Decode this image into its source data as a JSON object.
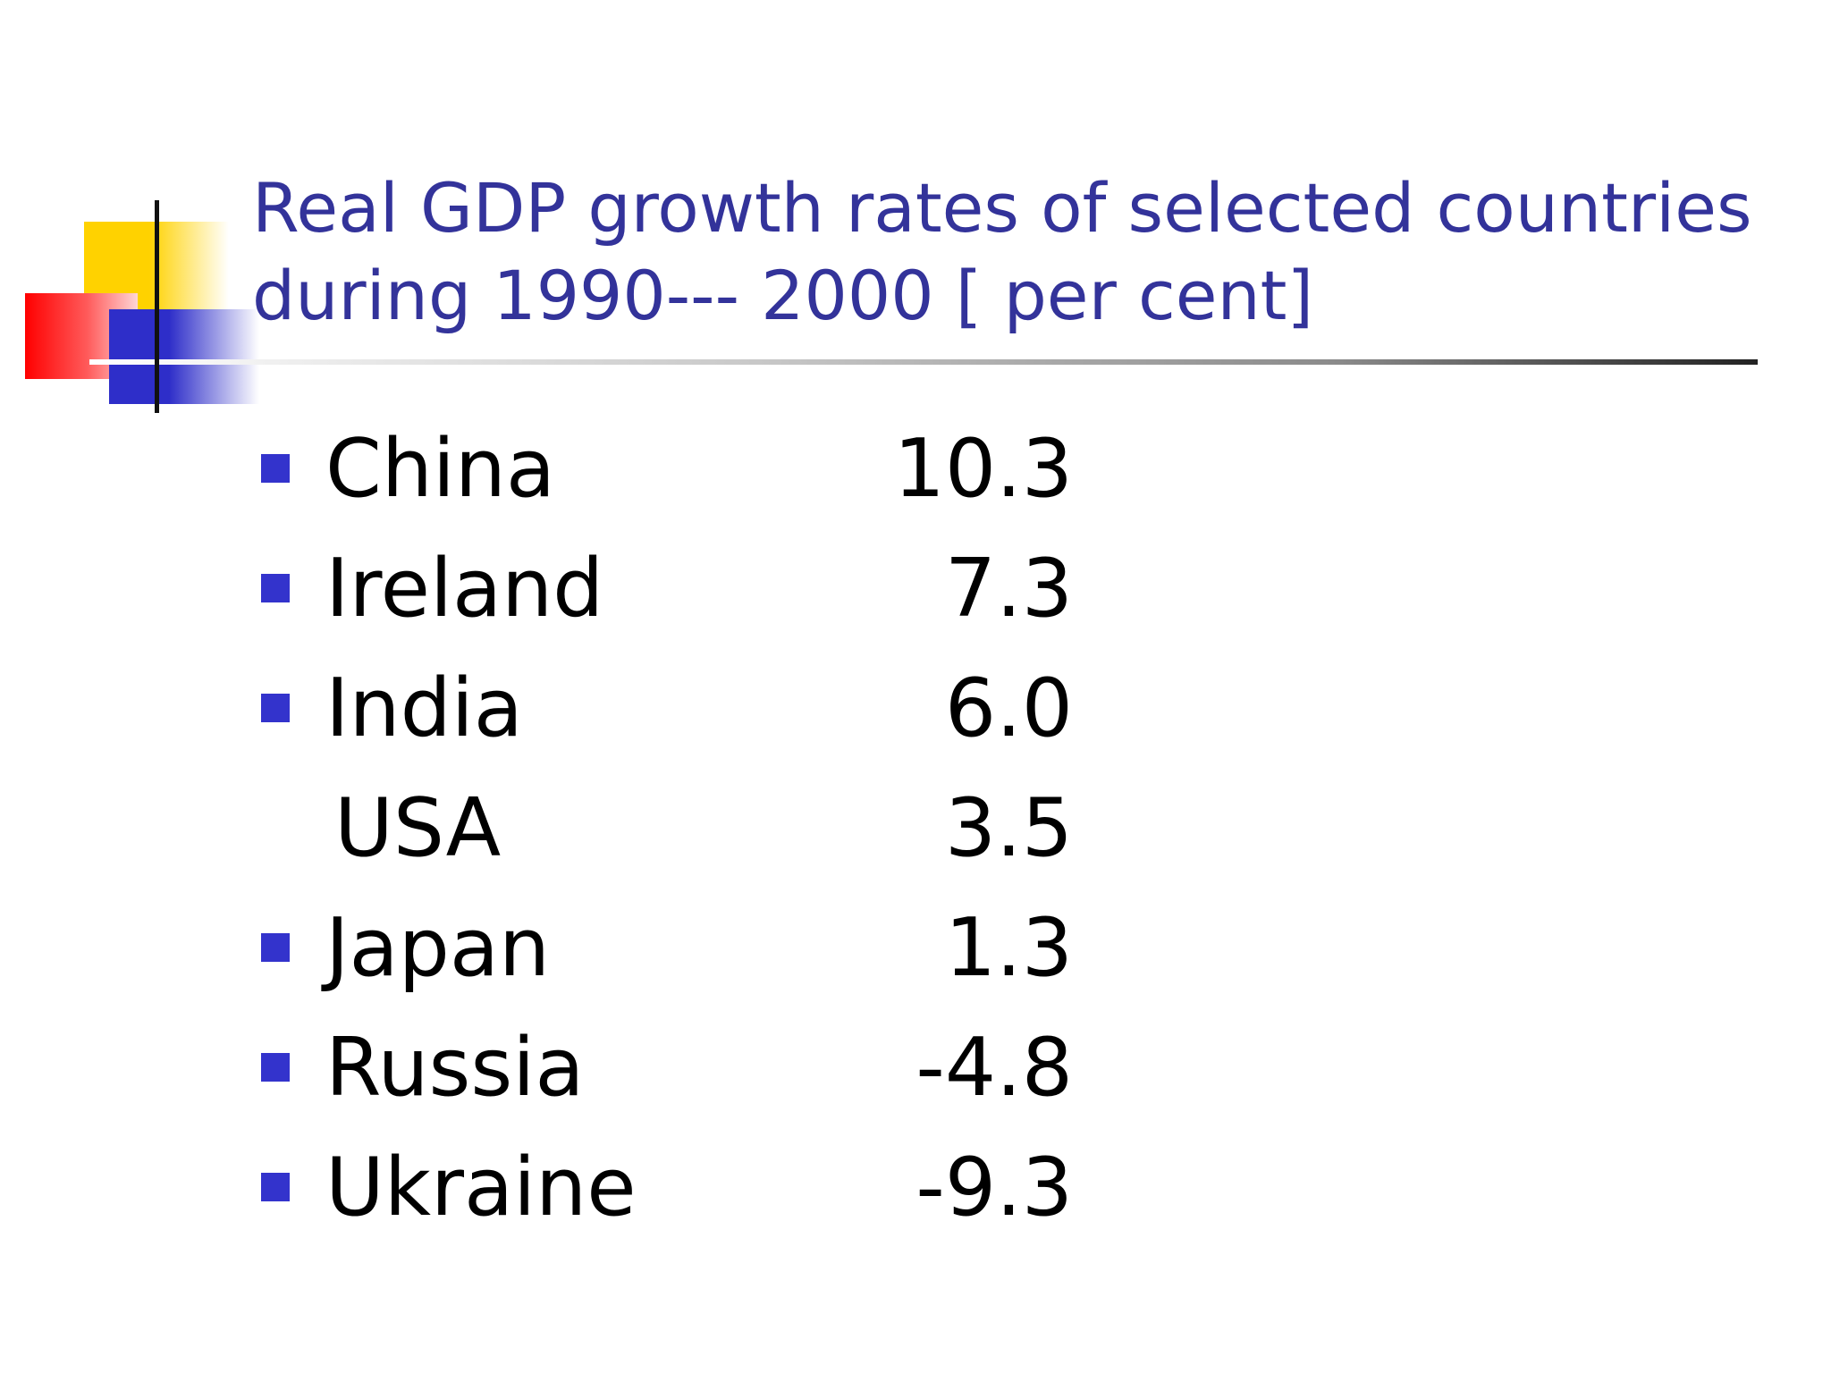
{
  "slide": {
    "title": "Real GDP growth rates of selected countries during 1990--- 2000 [ per cent]",
    "rows": [
      {
        "country": "China",
        "value": "10.3",
        "bullet": true
      },
      {
        "country": "Ireland",
        "value": "7.3",
        "bullet": true
      },
      {
        "country": "India",
        "value": "6.0",
        "bullet": true
      },
      {
        "country": "USA",
        "value": "3.5",
        "bullet": false
      },
      {
        "country": "Japan",
        "value": "1.3",
        "bullet": true
      },
      {
        "country": "Russia",
        "value": "-4.8",
        "bullet": true
      },
      {
        "country": "Ukraine",
        "value": "-9.3",
        "bullet": true
      }
    ]
  },
  "colors": {
    "title": "#33339a",
    "bullet": "#3333cc",
    "text": "#000000"
  }
}
